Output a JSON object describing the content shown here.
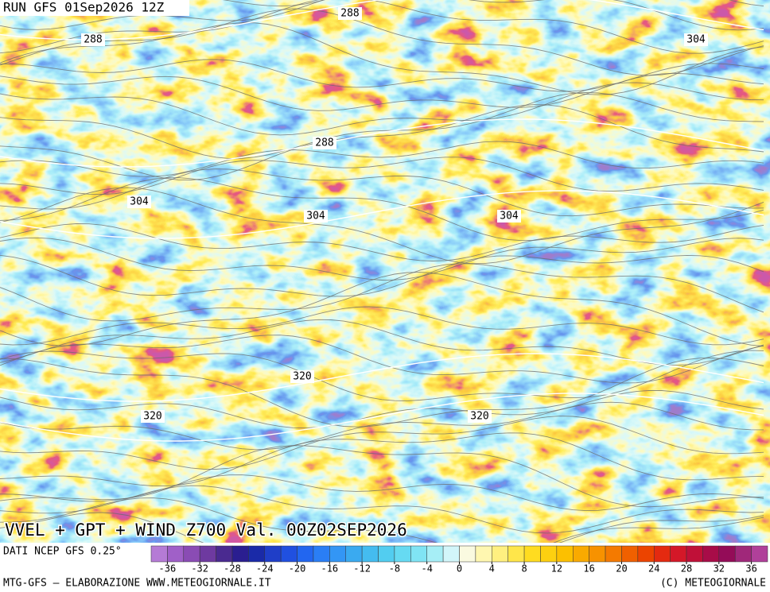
{
  "header": {
    "run": "RUN GFS 01Sep2026 12Z"
  },
  "map": {
    "title": "VVEL + GPT + WIND Z700 Val. 00Z02SEP2026",
    "contour_labels": [
      288,
      288,
      288,
      304,
      304,
      304,
      304,
      320,
      320,
      320
    ]
  },
  "legend": {
    "source": "DATI NCEP GFS 0.25°",
    "range": [
      -38,
      38
    ],
    "ticks": [
      -36,
      -32,
      -28,
      -24,
      -20,
      -16,
      -12,
      -8,
      -4,
      0,
      4,
      8,
      12,
      16,
      20,
      24,
      28,
      32,
      36
    ],
    "colors": [
      "#b57bd6",
      "#a060c8",
      "#8a4cb4",
      "#6e3aa0",
      "#4a2a90",
      "#2a1e90",
      "#1a2aa8",
      "#1f3ec8",
      "#2050e0",
      "#2266f0",
      "#2a7ef5",
      "#3396f5",
      "#3aaaf0",
      "#44bcf0",
      "#52cdf0",
      "#66daf2",
      "#80e4f4",
      "#a6eef6",
      "#d2f6fa",
      "#fafae0",
      "#fff7b0",
      "#fff080",
      "#ffe64a",
      "#ffdc20",
      "#fdd010",
      "#fcc000",
      "#f9aa00",
      "#f79200",
      "#f47a00",
      "#f06000",
      "#ec4400",
      "#e42a10",
      "#d41828",
      "#c01038",
      "#a80c48",
      "#940c58",
      "#a0287a",
      "#b0409a"
    ]
  },
  "footer": {
    "left": "MTG-GFS — ELABORAZIONE WWW.METEOGIORNALE.IT",
    "right": "(C) METEOGIORNALE"
  }
}
